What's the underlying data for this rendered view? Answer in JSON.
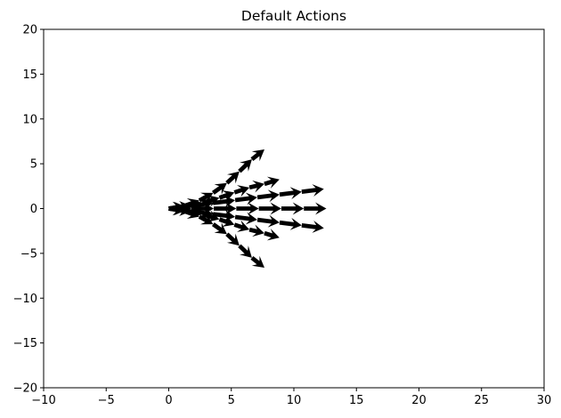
{
  "chart_data": {
    "type": "quiver",
    "title": "Default Actions",
    "xlabel": "",
    "ylabel": "",
    "xlim": [
      -10,
      30
    ],
    "ylim": [
      -20,
      20
    ],
    "xticks": [
      -10,
      -5,
      0,
      5,
      10,
      15,
      20,
      25,
      30
    ],
    "yticks": [
      -20,
      -15,
      -10,
      -5,
      0,
      5,
      10,
      15,
      20
    ],
    "xtick_labels": [
      "−10",
      "−5",
      "0",
      "5",
      "10",
      "15",
      "20",
      "25",
      "30"
    ],
    "ytick_labels": [
      "−20",
      "−15",
      "−10",
      "−5",
      "0",
      "5",
      "10",
      "15",
      "20"
    ],
    "grid": false,
    "arrow_color": "#000000",
    "series": [
      {
        "values": [
          [
            0,
            0,
            1.8,
            0
          ],
          [
            1.8,
            0,
            1.8,
            0
          ],
          [
            3.6,
            0,
            1.8,
            0
          ],
          [
            5.4,
            0,
            1.8,
            0
          ],
          [
            7.2,
            0,
            1.8,
            0
          ],
          [
            9.0,
            0,
            1.8,
            0
          ],
          [
            10.8,
            0,
            1.8,
            0
          ]
        ]
      },
      {
        "values": [
          [
            0,
            0,
            1.77,
            0.31
          ],
          [
            1.77,
            0.31,
            1.77,
            0.31
          ],
          [
            3.54,
            0.62,
            1.77,
            0.31
          ],
          [
            5.31,
            0.94,
            1.77,
            0.31
          ],
          [
            7.09,
            1.25,
            1.77,
            0.31
          ],
          [
            8.86,
            1.56,
            1.77,
            0.31
          ],
          [
            10.63,
            1.87,
            1.77,
            0.31
          ]
        ]
      },
      {
        "values": [
          [
            0,
            0,
            1.77,
            -0.31
          ],
          [
            1.77,
            -0.31,
            1.77,
            -0.31
          ],
          [
            3.54,
            -0.62,
            1.77,
            -0.31
          ],
          [
            5.31,
            -0.94,
            1.77,
            -0.31
          ],
          [
            7.09,
            -1.25,
            1.77,
            -0.31
          ],
          [
            8.86,
            -1.56,
            1.77,
            -0.31
          ],
          [
            10.63,
            -1.87,
            1.77,
            -0.31
          ]
        ]
      },
      {
        "values": [
          [
            0,
            0,
            1.35,
            0.2
          ],
          [
            1.35,
            0.2,
            1.35,
            0.45
          ],
          [
            2.7,
            0.65,
            1.35,
            0.55
          ],
          [
            4.05,
            1.2,
            1.2,
            0.6
          ],
          [
            5.25,
            1.8,
            1.2,
            0.55
          ],
          [
            6.45,
            2.35,
            1.2,
            0.4
          ],
          [
            7.65,
            2.75,
            1.2,
            0.5
          ]
        ]
      },
      {
        "values": [
          [
            0,
            0,
            1.35,
            -0.2
          ],
          [
            1.35,
            -0.2,
            1.35,
            -0.45
          ],
          [
            2.7,
            -0.65,
            1.35,
            -0.55
          ],
          [
            4.05,
            -1.2,
            1.2,
            -0.6
          ],
          [
            5.25,
            -1.8,
            1.2,
            -0.55
          ],
          [
            6.45,
            -2.35,
            1.2,
            -0.4
          ],
          [
            7.65,
            -2.75,
            1.2,
            -0.5
          ]
        ]
      },
      {
        "values": [
          [
            0,
            0,
            1.25,
            0.3
          ],
          [
            1.25,
            0.3,
            1.2,
            0.6
          ],
          [
            2.45,
            0.9,
            1.1,
            0.85
          ],
          [
            3.55,
            1.75,
            1.1,
            1.1
          ],
          [
            4.65,
            2.85,
            1.0,
            1.3
          ],
          [
            5.65,
            4.15,
            1.0,
            1.35
          ],
          [
            6.65,
            5.5,
            1.0,
            1.1
          ]
        ]
      },
      {
        "values": [
          [
            0,
            0,
            1.25,
            -0.3
          ],
          [
            1.25,
            -0.3,
            1.2,
            -0.6
          ],
          [
            2.45,
            -0.9,
            1.1,
            -0.85
          ],
          [
            3.55,
            -1.75,
            1.1,
            -1.1
          ],
          [
            4.65,
            -2.85,
            1.0,
            -1.3
          ],
          [
            5.65,
            -4.15,
            1.0,
            -1.35
          ],
          [
            6.65,
            -5.5,
            1.0,
            -1.1
          ]
        ]
      }
    ]
  }
}
